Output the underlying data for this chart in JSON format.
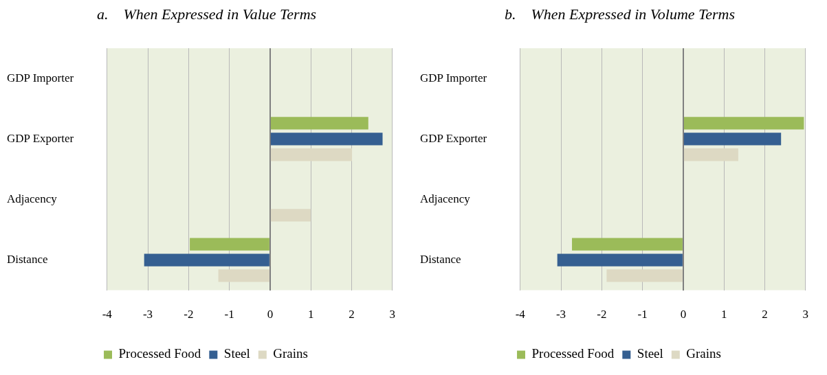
{
  "chart_data": [
    {
      "type": "bar",
      "title": "a.    When Expressed in Value Terms",
      "orientation": "horizontal",
      "categories": [
        "GDP Importer",
        "GDP Exporter",
        "Adjacency",
        "Distance"
      ],
      "series": [
        {
          "name": "Processed Food",
          "color": "#9bbb59",
          "values": [
            null,
            2.41,
            null,
            -1.97
          ]
        },
        {
          "name": "Steel",
          "color": "#355f91",
          "values": [
            null,
            2.76,
            null,
            -3.09
          ]
        },
        {
          "name": "Grains",
          "color": "#ddd9c3",
          "values": [
            null,
            2.01,
            1.0,
            -1.27
          ]
        }
      ],
      "xlim": [
        -4,
        3
      ],
      "xticks": [
        -4,
        -3,
        -2,
        -1,
        0,
        1,
        2,
        3
      ],
      "grid": "x",
      "legend": "bottom"
    },
    {
      "type": "bar",
      "title": "b.    When Expressed in Volume Terms",
      "orientation": "horizontal",
      "categories": [
        "GDP Importer",
        "GDP Exporter",
        "Adjacency",
        "Distance"
      ],
      "series": [
        {
          "name": "Processed Food",
          "color": "#9bbb59",
          "values": [
            null,
            2.96,
            null,
            -2.73
          ]
        },
        {
          "name": "Steel",
          "color": "#355f91",
          "values": [
            null,
            2.4,
            null,
            -3.09
          ]
        },
        {
          "name": "Grains",
          "color": "#ddd9c3",
          "values": [
            null,
            1.35,
            null,
            -1.88
          ]
        }
      ],
      "xlim": [
        -4,
        3
      ],
      "xticks": [
        -4,
        -3,
        -2,
        -1,
        0,
        1,
        2,
        3
      ],
      "grid": "x",
      "legend": "bottom"
    }
  ]
}
